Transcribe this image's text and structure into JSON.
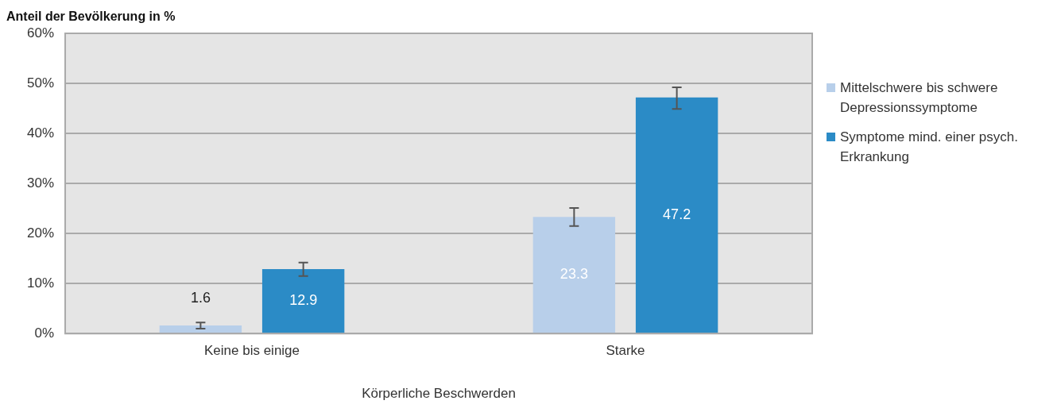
{
  "chart_data": {
    "type": "bar",
    "ylabel": "Anteil der Bevölkerung in %",
    "xlabel": "Körperliche Beschwerden",
    "categories": [
      "Keine bis einige",
      "Starke"
    ],
    "series": [
      {
        "name": "Mittelschwere bis schwere Depressionssymptome",
        "color": "#b8cfea",
        "values": [
          1.6,
          23.3
        ],
        "errors": [
          [
            1.0,
            2.2
          ],
          [
            21.5,
            25.1
          ]
        ]
      },
      {
        "name": "Symptome mind. einer psych. Erkrankung",
        "color": "#2b8bc6",
        "values": [
          12.9,
          47.2
        ],
        "errors": [
          [
            11.5,
            14.2
          ],
          [
            44.9,
            49.2
          ]
        ]
      }
    ],
    "ylim": [
      0,
      60
    ],
    "yticks": [
      {
        "value": 0,
        "label": "0%"
      },
      {
        "value": 10,
        "label": "10%"
      },
      {
        "value": 20,
        "label": "20%"
      },
      {
        "value": 30,
        "label": "30%"
      },
      {
        "value": 40,
        "label": "40%"
      },
      {
        "value": 50,
        "label": "50%"
      },
      {
        "value": 60,
        "label": "60%"
      }
    ],
    "grid": "y",
    "legend": "right",
    "data_labels": true
  }
}
